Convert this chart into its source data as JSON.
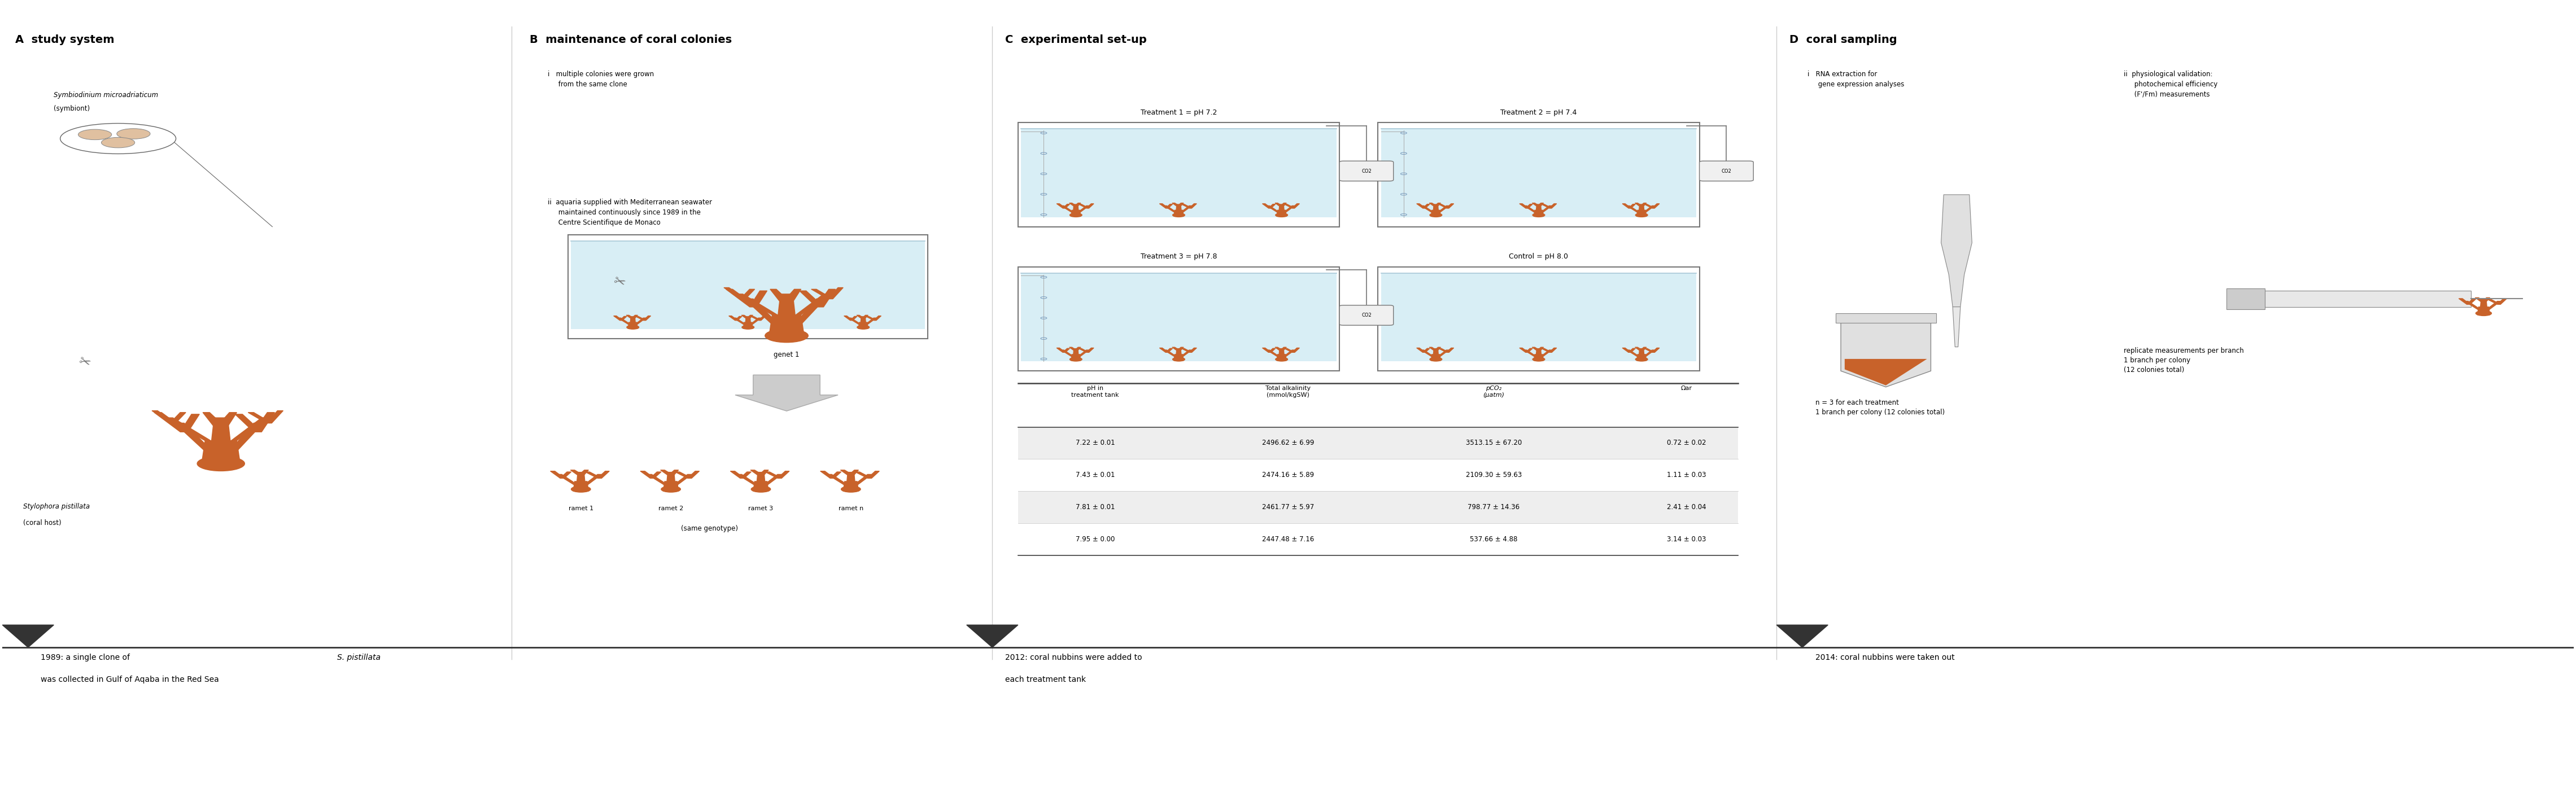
{
  "fig_width": 45.62,
  "fig_height": 14.28,
  "bg_color": "#ffffff",
  "coral_color": "#C8622A",
  "water_color": "#D8EEF5",
  "tank_border": "#888888",
  "text_color": "#000000",
  "panel_A_title": "A  study system",
  "panel_B_title": "B  maintenance of coral colonies",
  "panel_C_title": "C  experimental set-up",
  "panel_D_title": "D  coral sampling",
  "symbiont_label_italic": "Symbiodinium microadriaticum",
  "symbiont_label_normal": "(symbiont)",
  "coral_host_italic": "Stylophora pistillata",
  "coral_host_normal": "(coral host)",
  "bi_label": "i   multiple colonies were grown\n     from the same clone",
  "bii_label": "ii  aquaria supplied with Mediterranean seawater\n     maintained continuously since 1989 in the\n     Centre Scientifique de Monaco",
  "genet1_label": "genet 1",
  "ramet1_label": "ramet 1",
  "ramet2_label": "ramet 2",
  "ramet3_label": "ramet 3",
  "rametn_label": "ramet n",
  "same_genotype_label": "(same genotype)",
  "t1_label": "Treatment 1 = pH 7.2",
  "t2_label": "Treatment 2 = pH 7.4",
  "t3_label": "Treatment 3 = pH 7.8",
  "t4_label": "Control = pH 8.0",
  "table_headers": [
    "pH in\ntreatment tank",
    "Total alkalinity\n(mmol/kgSW)",
    "pCO₂\n(μatm)",
    "Ωar"
  ],
  "table_rows": [
    [
      "7.22 ± 0.01",
      "2496.62 ± 6.99",
      "3513.15 ± 67.20",
      "0.72 ± 0.02"
    ],
    [
      "7.43 ± 0.01",
      "2474.16 ± 5.89",
      "2109.30 ± 59.63",
      "1.11 ± 0.03"
    ],
    [
      "7.81 ± 0.01",
      "2461.77 ± 5.97",
      "798.77 ± 14.36",
      "2.41 ± 0.04"
    ],
    [
      "7.95 ± 0.00",
      "2447.48 ± 7.16",
      "537.66 ± 4.88",
      "3.14 ± 0.03"
    ]
  ],
  "di_label": "i   RNA extraction for\n     gene expression analyses",
  "dii_label": "ii  physiological validation:\n     photochemical efficiency\n     (F'/Fm) measurements",
  "dn_label": "n = 3 for each treatment\n1 branch per colony (12 colonies total)",
  "dreplicate_label": "replicate measurements per branch\n1 branch per colony\n(12 colonies total)",
  "timeline_1989_a": "1989: a single clone of ",
  "timeline_1989_italic": "S. pistillata",
  "timeline_1989_b": "was collected in Gulf of Aqaba in the Red Sea",
  "timeline_2012_a": "2012: coral nubbins were added to",
  "timeline_2012_b": "each treatment tank",
  "timeline_2014": "2014: coral nubbins were taken out"
}
